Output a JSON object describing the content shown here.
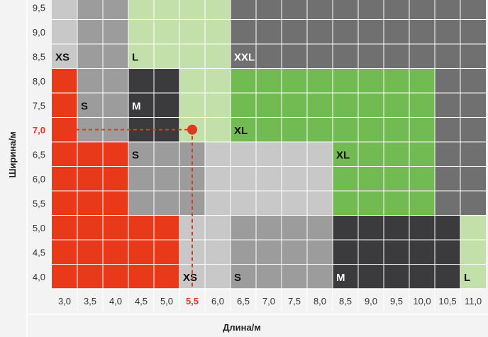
{
  "chart_data": {
    "type": "heatmap",
    "title": "",
    "xlabel": "Длина/м",
    "ylabel": "Ширина/м",
    "x": [
      "3,0",
      "3,5",
      "4,0",
      "4,5",
      "5,0",
      "5,5",
      "6,0",
      "6,5",
      "7,0",
      "7,5",
      "8,0",
      "8,5",
      "9,0",
      "9,5",
      "10,0",
      "10,5",
      "11,0"
    ],
    "y": [
      "4,0",
      "4,5",
      "5,0",
      "5,5",
      "6,0",
      "6,5",
      "7,0",
      "7,5",
      "8,0",
      "8,5",
      "9,0",
      "9,5"
    ],
    "highlight": {
      "x": "5,5",
      "y": "7,0",
      "color": "#e03a1e"
    },
    "colors": {
      "red": "#e8391b",
      "dark": "#3b3b3d",
      "gray": "#9c9c9c",
      "dgray": "#707070",
      "light": "#c8c8c8",
      "lgreen": "#c3dfaa",
      "green": "#72bb52"
    },
    "rows_top_to_bottom": [
      [
        "light",
        "gray",
        "gray",
        "lgreen",
        "lgreen",
        "lgreen",
        "lgreen",
        "dgray",
        "dgray",
        "dgray",
        "dgray",
        "dgray",
        "dgray",
        "dgray",
        "dgray",
        "dgray",
        "dgray"
      ],
      [
        "light",
        "gray",
        "gray",
        "lgreen",
        "lgreen",
        "lgreen",
        "lgreen",
        "dgray",
        "dgray",
        "dgray",
        "dgray",
        "dgray",
        "dgray",
        "dgray",
        "dgray",
        "dgray",
        "dgray"
      ],
      [
        "light",
        "gray",
        "gray",
        "lgreen",
        "lgreen",
        "lgreen",
        "lgreen",
        "dgray",
        "dgray",
        "dgray",
        "dgray",
        "dgray",
        "dgray",
        "dgray",
        "dgray",
        "dgray",
        "dgray"
      ],
      [
        "red",
        "gray",
        "gray",
        "dark",
        "dark",
        "lgreen",
        "lgreen",
        "green",
        "green",
        "green",
        "green",
        "green",
        "green",
        "green",
        "green",
        "dgray",
        "dgray"
      ],
      [
        "red",
        "gray",
        "gray",
        "dark",
        "dark",
        "lgreen",
        "lgreen",
        "green",
        "green",
        "green",
        "green",
        "green",
        "green",
        "green",
        "green",
        "dgray",
        "dgray"
      ],
      [
        "red",
        "gray",
        "gray",
        "dark",
        "dark",
        "lgreen",
        "lgreen",
        "green",
        "green",
        "green",
        "green",
        "green",
        "green",
        "green",
        "green",
        "dgray",
        "dgray"
      ],
      [
        "red",
        "red",
        "red",
        "gray",
        "gray",
        "gray",
        "light",
        "light",
        "light",
        "light",
        "light",
        "green",
        "green",
        "green",
        "green",
        "dgray",
        "dgray"
      ],
      [
        "red",
        "red",
        "red",
        "gray",
        "gray",
        "gray",
        "light",
        "light",
        "light",
        "light",
        "light",
        "green",
        "green",
        "green",
        "green",
        "dgray",
        "dgray"
      ],
      [
        "red",
        "red",
        "red",
        "gray",
        "gray",
        "gray",
        "light",
        "light",
        "light",
        "light",
        "light",
        "green",
        "green",
        "green",
        "green",
        "dgray",
        "dgray"
      ],
      [
        "red",
        "red",
        "red",
        "red",
        "red",
        "light",
        "light",
        "gray",
        "gray",
        "gray",
        "gray",
        "dark",
        "dark",
        "dark",
        "dark",
        "dark",
        "lgreen"
      ],
      [
        "red",
        "red",
        "red",
        "red",
        "red",
        "light",
        "light",
        "gray",
        "gray",
        "gray",
        "gray",
        "dark",
        "dark",
        "dark",
        "dark",
        "dark",
        "lgreen"
      ],
      [
        "red",
        "red",
        "red",
        "red",
        "red",
        "light",
        "light",
        "gray",
        "gray",
        "gray",
        "gray",
        "dark",
        "dark",
        "dark",
        "dark",
        "dark",
        "lgreen"
      ]
    ],
    "zone_labels": [
      {
        "text": "XS",
        "x": "3,0",
        "y": "8,5",
        "color": "#111111"
      },
      {
        "text": "L",
        "x": "4,5",
        "y": "8,5",
        "color": "#111111"
      },
      {
        "text": "XXL",
        "x": "6,5",
        "y": "8,5",
        "color": "#ffffff"
      },
      {
        "text": "S",
        "x": "3,5",
        "y": "7,5",
        "color": "#111111"
      },
      {
        "text": "M",
        "x": "4,5",
        "y": "7,5",
        "color": "#ffffff"
      },
      {
        "text": "XL",
        "x": "6,5",
        "y": "7,0",
        "color": "#111111"
      },
      {
        "text": "S",
        "x": "4,5",
        "y": "6,5",
        "color": "#111111"
      },
      {
        "text": "XL",
        "x": "8,5",
        "y": "6,5",
        "color": "#111111"
      },
      {
        "text": "XS",
        "x": "5,5",
        "y": "4,0",
        "color": "#111111"
      },
      {
        "text": "S",
        "x": "6,5",
        "y": "4,0",
        "color": "#111111"
      },
      {
        "text": "M",
        "x": "8,5",
        "y": "4,0",
        "color": "#ffffff"
      },
      {
        "text": "L",
        "x": "11,0",
        "y": "4,0",
        "color": "#111111"
      }
    ]
  }
}
